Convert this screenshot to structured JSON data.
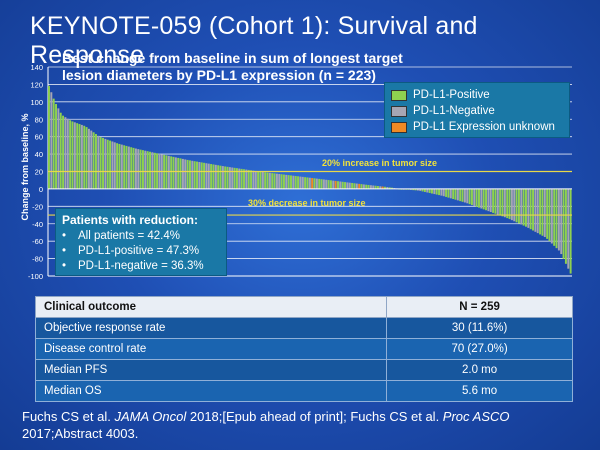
{
  "slide_title": "KEYNOTE-059 (Cohort 1): Survival and Response",
  "chart_data": {
    "type": "bar",
    "title": "Best change from baseline in sum of longest target lesion diameters by PD-L1 expression (n = 223)",
    "title_lines": [
      "Best change from baseline in sum of longest target",
      "lesion diameters by PD-L1 expression (n = 223)"
    ],
    "ylabel": "Change from baseline, %",
    "ylim": [
      -100,
      140
    ],
    "yticks": [
      140,
      120,
      100,
      80,
      60,
      40,
      20,
      0,
      -20,
      -40,
      -60,
      -80,
      -100
    ],
    "grid": true,
    "legend_position": "top-right",
    "series": [
      {
        "name": "PD-L1-Positive",
        "color": "#8fd14f"
      },
      {
        "name": "PD-L1-Negative",
        "color": "#a6a6b4"
      },
      {
        "name": "PD-L1 Expression unknown",
        "color": "#f08a24"
      }
    ],
    "reference_lines": [
      {
        "value": 20,
        "label": "20% increase in tumor size",
        "color": "#e8d84a"
      },
      {
        "value": -30,
        "label": "30% decrease in tumor size",
        "color": "#e8d84a"
      }
    ],
    "waterfall_profile": [
      [
        0,
        122
      ],
      [
        3,
        100
      ],
      [
        6,
        85
      ],
      [
        10,
        78
      ],
      [
        16,
        72
      ],
      [
        22,
        60
      ],
      [
        30,
        52
      ],
      [
        38,
        46
      ],
      [
        48,
        40
      ],
      [
        60,
        33
      ],
      [
        75,
        26
      ],
      [
        90,
        20
      ],
      [
        105,
        15
      ],
      [
        120,
        10
      ],
      [
        135,
        5
      ],
      [
        145,
        2
      ],
      [
        150,
        0
      ],
      [
        158,
        -2
      ],
      [
        168,
        -8
      ],
      [
        178,
        -16
      ],
      [
        188,
        -26
      ],
      [
        196,
        -34
      ],
      [
        204,
        -44
      ],
      [
        212,
        -56
      ],
      [
        218,
        -72
      ],
      [
        223,
        -100
      ]
    ],
    "n_bars": 223
  },
  "reduction": {
    "title": "Patients with reduction:",
    "items": [
      "All patients = 42.4%",
      "PD-L1-positive = 47.3%",
      "PD-L1-negative = 36.3%"
    ]
  },
  "outcomes": {
    "header": [
      "Clinical outcome",
      "N = 259"
    ],
    "rows": [
      [
        "Objective response rate",
        "30 (11.6%)"
      ],
      [
        "Disease control rate",
        "70 (27.0%)"
      ],
      [
        "Median PFS",
        "2.0 mo"
      ],
      [
        "Median OS",
        "5.6 mo"
      ]
    ]
  },
  "citation": {
    "p1": "Fuchs CS et al. ",
    "j1": "JAMA Oncol",
    "p2": " 2018;[Epub ahead of print]; Fuchs CS et al. ",
    "j2": "Proc ASCO",
    "p3": " 2017;Abstract 4003."
  }
}
